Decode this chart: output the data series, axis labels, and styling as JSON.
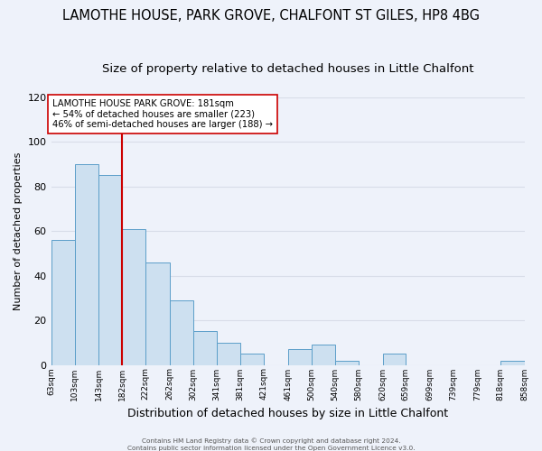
{
  "title": "LAMOTHE HOUSE, PARK GROVE, CHALFONT ST GILES, HP8 4BG",
  "subtitle": "Size of property relative to detached houses in Little Chalfont",
  "xlabel": "Distribution of detached houses by size in Little Chalfont",
  "ylabel": "Number of detached properties",
  "bar_left_edges": [
    63,
    103,
    143,
    182,
    222,
    262,
    302,
    341,
    381,
    421,
    461,
    500,
    540,
    580,
    620,
    659,
    699,
    739,
    779,
    818
  ],
  "bar_heights": [
    56,
    90,
    85,
    61,
    46,
    29,
    15,
    10,
    5,
    0,
    7,
    9,
    2,
    0,
    5,
    0,
    0,
    0,
    0,
    2
  ],
  "bar_widths": [
    40,
    40,
    39,
    40,
    40,
    40,
    39,
    40,
    40,
    40,
    39,
    40,
    40,
    40,
    39,
    40,
    40,
    40,
    39,
    40
  ],
  "tick_labels": [
    "63sqm",
    "103sqm",
    "143sqm",
    "182sqm",
    "222sqm",
    "262sqm",
    "302sqm",
    "341sqm",
    "381sqm",
    "421sqm",
    "461sqm",
    "500sqm",
    "540sqm",
    "580sqm",
    "620sqm",
    "659sqm",
    "699sqm",
    "739sqm",
    "779sqm",
    "818sqm",
    "858sqm"
  ],
  "tick_positions": [
    63,
    103,
    143,
    182,
    222,
    262,
    302,
    341,
    381,
    421,
    461,
    500,
    540,
    580,
    620,
    659,
    699,
    739,
    779,
    818,
    858
  ],
  "bar_color": "#cde0f0",
  "bar_edge_color": "#5b9ec9",
  "vline_x": 182,
  "vline_color": "#cc0000",
  "ylim": [
    0,
    120
  ],
  "yticks": [
    0,
    20,
    40,
    60,
    80,
    100,
    120
  ],
  "annotation_text": "LAMOTHE HOUSE PARK GROVE: 181sqm\n← 54% of detached houses are smaller (223)\n46% of semi-detached houses are larger (188) →",
  "footer1": "Contains HM Land Registry data © Crown copyright and database right 2024.",
  "footer2": "Contains public sector information licensed under the Open Government Licence v3.0.",
  "background_color": "#eef2fa",
  "grid_color": "#d8dde8",
  "title_fontsize": 10.5,
  "subtitle_fontsize": 9.5,
  "xlabel_fontsize": 9,
  "ylabel_fontsize": 8
}
